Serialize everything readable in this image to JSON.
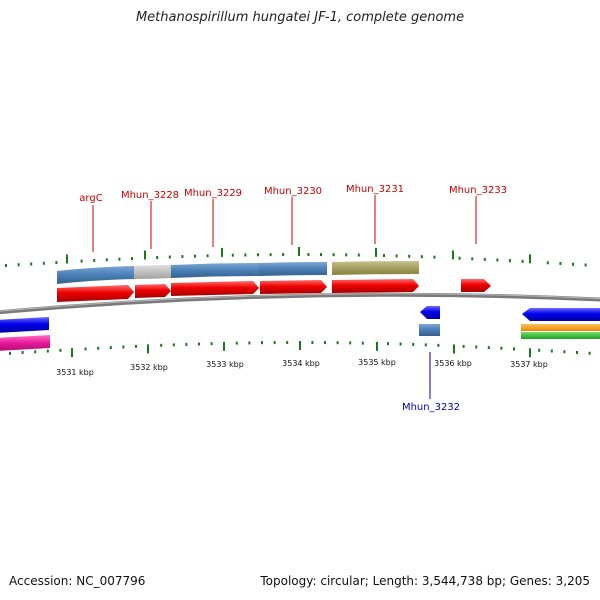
{
  "title": "Methanospirillum hungatei JF-1, complete genome",
  "footer": {
    "accession": "Accession: NC_007796",
    "topology": "Topology: circular; Length: 3,544,738 bp; Genes: 3,205"
  },
  "colors": {
    "forward_gene": "#ee0000",
    "reverse_gene": "#0000ee",
    "cds_blue": "#4a7fb5",
    "cds_grey": "#c0c0c0",
    "cds_olive": "#a5a060",
    "ticks": "#1a7a1a",
    "backbone": "#808080",
    "label_forward": "#cc0000",
    "label_reverse": "#0000bb"
  },
  "scale_labels": [
    "3531 kbp",
    "3532 kbp",
    "3533 kbp",
    "3534 kbp",
    "3535 kbp",
    "3536 kbp",
    "3537 kbp"
  ],
  "gene_labels": {
    "argC": "argC",
    "mhun_3228": "Mhun_3228",
    "mhun_3229": "Mhun_3229",
    "mhun_3230": "Mhun_3230",
    "mhun_3231": "Mhun_3231",
    "mhun_3232": "Mhun_3232",
    "mhun_3233": "Mhun_3233"
  }
}
